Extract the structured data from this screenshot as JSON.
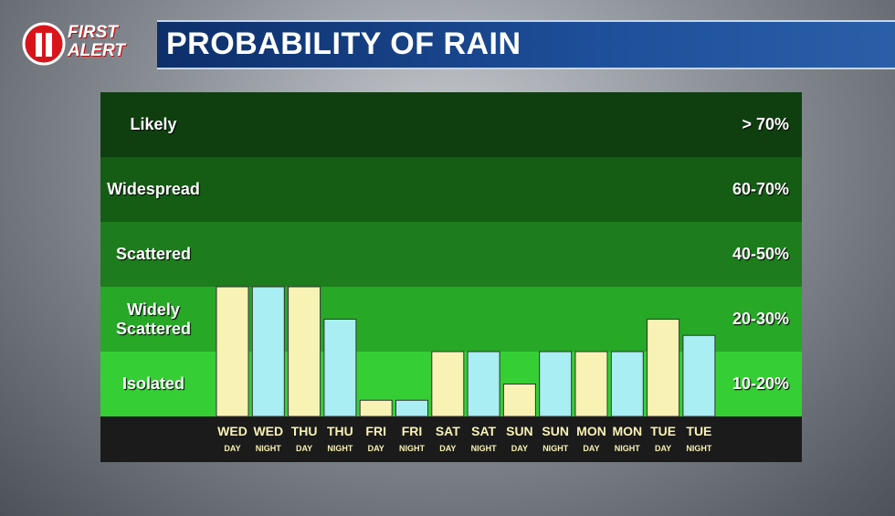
{
  "header": {
    "logo_top": "FIRST",
    "logo_bottom": "ALERT",
    "title": "PROBABILITY OF RAIN"
  },
  "chart_data": {
    "type": "bar",
    "bands": [
      {
        "label": "Likely",
        "range": "> 70%",
        "color": "#0f3f0f"
      },
      {
        "label": "Widespread",
        "range": "60-70%",
        "color": "#155c15"
      },
      {
        "label": "Scattered",
        "range": "40-50%",
        "color": "#1d7d1d"
      },
      {
        "label": "Widely Scattered",
        "range": "20-30%",
        "color": "#27a827"
      },
      {
        "label": "Isolated",
        "range": "10-20%",
        "color": "#35cf35"
      }
    ],
    "categories": [
      "WED",
      "WED",
      "THU",
      "THU",
      "FRI",
      "FRI",
      "SAT",
      "SAT",
      "SUN",
      "SUN",
      "MON",
      "MON",
      "TUE",
      "TUE"
    ],
    "sublabels": [
      "DAY",
      "NIGHT",
      "DAY",
      "NIGHT",
      "DAY",
      "NIGHT",
      "DAY",
      "NIGHT",
      "DAY",
      "NIGHT",
      "DAY",
      "NIGHT",
      "DAY",
      "NIGHT"
    ],
    "values": [
      30,
      30,
      30,
      25,
      12.5,
      12.5,
      20,
      20,
      15,
      20,
      20,
      20,
      25,
      22.5
    ],
    "colors": [
      "#f8f2b4",
      "#a9eef2",
      "#f8f2b4",
      "#a9eef2",
      "#f8f2b4",
      "#a9eef2",
      "#f8f2b4",
      "#a9eef2",
      "#f8f2b4",
      "#a9eef2",
      "#f8f2b4",
      "#a9eef2",
      "#f8f2b4",
      "#a9eef2"
    ],
    "ylim": [
      10,
      30
    ]
  }
}
